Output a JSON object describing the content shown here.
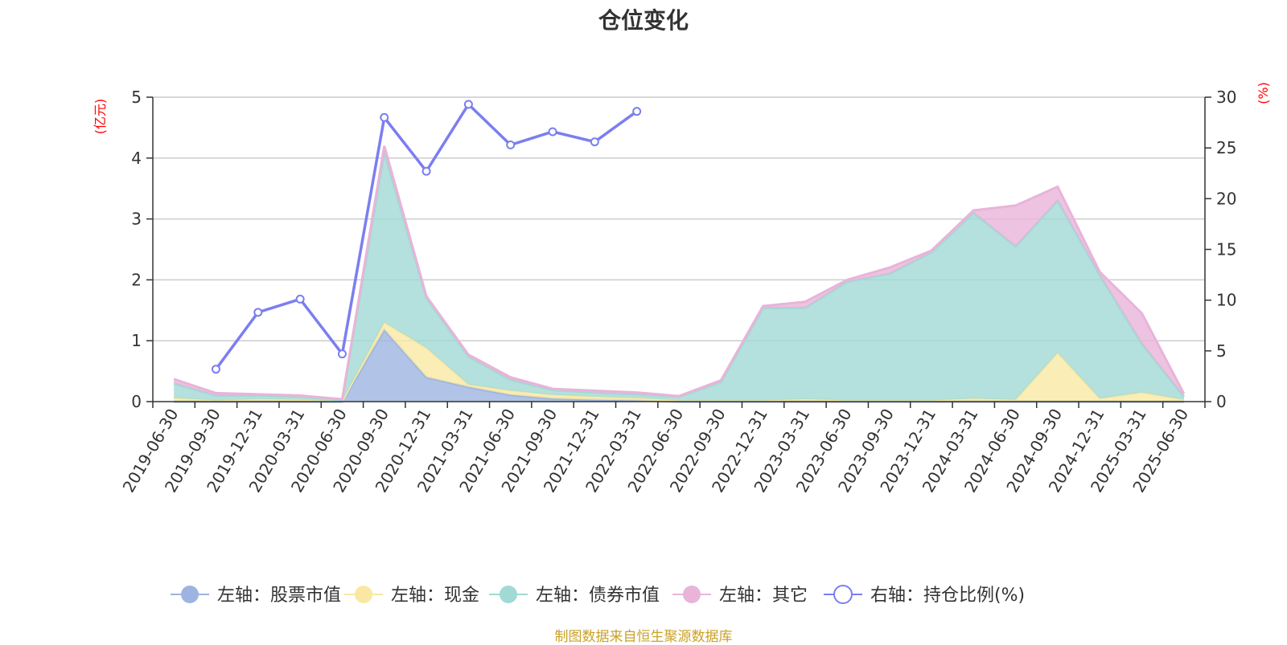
{
  "chart_data": {
    "type": "area",
    "title": "仓位变化",
    "source_note": "制图数据来自恒生聚源数据库",
    "left_axis_unit": "(亿元)",
    "right_axis_unit": "(%)",
    "left_ylim": [
      0,
      5
    ],
    "left_ticks": [
      "0",
      "1",
      "2",
      "3",
      "4",
      "5"
    ],
    "right_ylim": [
      0,
      30
    ],
    "right_ticks": [
      "0",
      "5",
      "10",
      "15",
      "20",
      "25",
      "30"
    ],
    "grid": true,
    "legend_position": "bottom",
    "categories": [
      "2019-06-30",
      "2019-09-30",
      "2019-12-31",
      "2020-03-31",
      "2020-06-30",
      "2020-09-30",
      "2020-12-31",
      "2021-03-31",
      "2021-06-30",
      "2021-09-30",
      "2021-12-31",
      "2022-03-31",
      "2022-06-30",
      "2022-09-30",
      "2022-12-31",
      "2023-03-31",
      "2023-06-30",
      "2023-09-30",
      "2023-12-31",
      "2024-03-31",
      "2024-06-30",
      "2024-09-30",
      "2024-12-31",
      "2025-03-31",
      "2025-06-30"
    ],
    "stacked_series": [
      {
        "name": "左轴：股票市值",
        "axis": "left",
        "color": "#9db4e0",
        "values": [
          0,
          0,
          0,
          0,
          0,
          1.18,
          0.4,
          0.24,
          0.11,
          0.05,
          0.03,
          0.02,
          0,
          0,
          0,
          0,
          0,
          0,
          0,
          0,
          0,
          0,
          0,
          0,
          0
        ]
      },
      {
        "name": "左轴：现金",
        "axis": "left",
        "color": "#f9e8a4",
        "values": [
          0.06,
          0.02,
          0.04,
          0.03,
          0.01,
          0.12,
          0.48,
          0.04,
          0.07,
          0.06,
          0.05,
          0.04,
          0.02,
          0.02,
          0.02,
          0.04,
          0.02,
          0.02,
          0.02,
          0.05,
          0.03,
          0.8,
          0.05,
          0.15,
          0.03
        ]
      },
      {
        "name": "左轴：债券市值",
        "axis": "left",
        "color": "#a1d9d5",
        "values": [
          0.24,
          0.08,
          0.06,
          0.05,
          0.02,
          2.8,
          0.82,
          0.46,
          0.18,
          0.08,
          0.07,
          0.06,
          0.06,
          0.3,
          1.52,
          1.5,
          1.95,
          2.08,
          2.43,
          3.05,
          2.52,
          2.5,
          2.03,
          0.8,
          0.05
        ]
      },
      {
        "name": "左轴：其它",
        "axis": "left",
        "color": "#e8b4d9",
        "values": [
          0.07,
          0.04,
          0.02,
          0.02,
          0.01,
          0.1,
          0.03,
          0.03,
          0.04,
          0.02,
          0.03,
          0.03,
          0.01,
          0.03,
          0.03,
          0.1,
          0.03,
          0.1,
          0.03,
          0.04,
          0.67,
          0.23,
          0.05,
          0.5,
          0.05
        ]
      }
    ],
    "line_series": {
      "name": "右轴：持仓比例(%)",
      "axis": "right",
      "color": "#7b7ef0",
      "values": [
        null,
        3.2,
        8.8,
        10.1,
        4.7,
        28.0,
        22.7,
        29.3,
        25.3,
        26.6,
        25.6,
        28.6,
        null,
        null,
        null,
        null,
        null,
        null,
        null,
        null,
        null,
        null,
        null,
        null,
        null
      ]
    }
  }
}
